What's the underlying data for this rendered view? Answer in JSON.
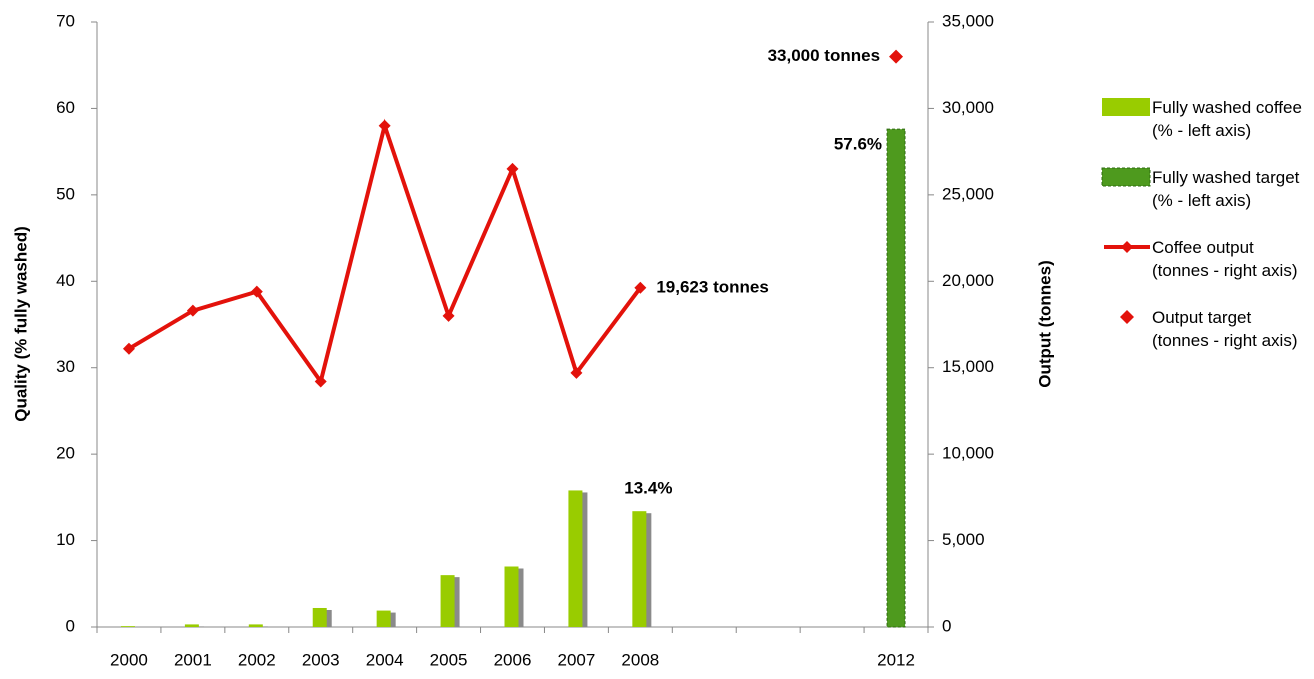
{
  "chart_data": {
    "type": "bar",
    "categories": [
      "2000",
      "2001",
      "2002",
      "2003",
      "2004",
      "2005",
      "2006",
      "2007",
      "2008",
      null,
      null,
      null,
      "2012"
    ],
    "y_label": "Quality (% fully washed)",
    "y2_label": "Output (tonnes)",
    "ylim": [
      0,
      70
    ],
    "yticks": [
      0,
      10,
      20,
      30,
      40,
      50,
      60,
      70
    ],
    "y2lim": [
      0,
      35000
    ],
    "y2ticks": [
      0,
      {
        "value": 5000,
        "label": "5,000"
      },
      {
        "value": 10000,
        "label": "10,000"
      },
      {
        "value": 15000,
        "label": "15,000"
      },
      {
        "value": 20000,
        "label": "20,000"
      },
      {
        "value": 25000,
        "label": "25,000"
      },
      {
        "value": 30000,
        "label": "30,000"
      },
      {
        "value": 35000,
        "label": "35,000"
      }
    ],
    "grid": false,
    "legend": "right",
    "series": [
      {
        "name": "Fully washed coffee (% - left axis)",
        "type": "bar",
        "color": "#99cc00",
        "values": [
          0.1,
          0.3,
          0.3,
          2.2,
          1.9,
          6,
          7,
          15.8,
          13.4,
          null,
          null,
          null,
          null
        ],
        "value_labels": [
          null,
          null,
          null,
          null,
          null,
          null,
          null,
          null,
          "13.4%",
          null,
          null,
          null,
          null
        ]
      },
      {
        "name": "Fully washed target (% - left axis)",
        "type": "bar",
        "color": "#4e9a1e",
        "values": [
          null,
          null,
          null,
          null,
          null,
          null,
          null,
          null,
          null,
          null,
          null,
          null,
          57.6
        ],
        "value_labels": [
          null,
          null,
          null,
          null,
          null,
          null,
          null,
          null,
          null,
          null,
          null,
          null,
          "57.6%"
        ]
      },
      {
        "name": "Coffee output (tonnes - right axis)",
        "type": "line",
        "axis": "y2",
        "color": "#e3120b",
        "values": [
          16100,
          18300,
          19400,
          14200,
          29000,
          18000,
          26500,
          14700,
          19623,
          null,
          null,
          null,
          null
        ],
        "value_labels": [
          null,
          null,
          null,
          null,
          null,
          null,
          null,
          null,
          "19,623 tonnes",
          null,
          null,
          null,
          null
        ]
      },
      {
        "name": "Output target (tonnes - right axis)",
        "type": "scatter",
        "axis": "y2",
        "color": "#e3120b",
        "values": [
          null,
          null,
          null,
          null,
          null,
          null,
          null,
          null,
          null,
          null,
          null,
          null,
          33000
        ],
        "value_labels": [
          null,
          null,
          null,
          null,
          null,
          null,
          null,
          null,
          null,
          null,
          null,
          null,
          "33,000 tonnes"
        ]
      }
    ]
  }
}
